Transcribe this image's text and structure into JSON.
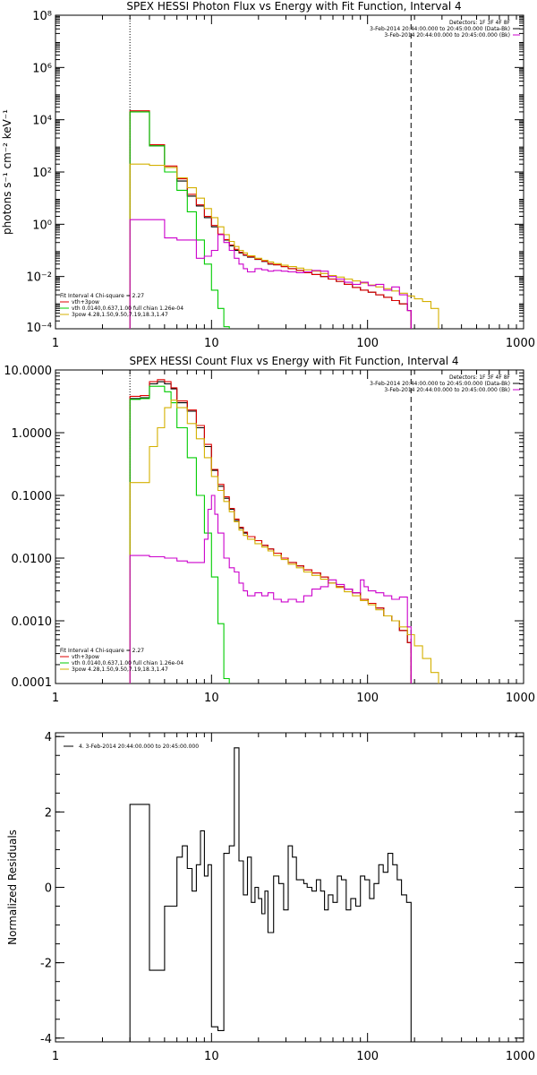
{
  "chart_data": [
    {
      "type": "line",
      "title": "SPEX HESSI Photon Flux vs Energy with Fit Function, Interval 4",
      "ylabel": "photons s⁻¹ cm⁻² keV⁻¹",
      "xlabel": "",
      "x_scale": "log",
      "y_scale": "log",
      "xlim": [
        1,
        1000
      ],
      "ylim": [
        0.0001,
        100000000
      ],
      "x_ticks": [
        "1",
        "10",
        "100",
        "1000"
      ],
      "y_ticks": [
        "10⁻⁴",
        "10⁻²",
        "10⁰",
        "10²",
        "10⁴",
        "10⁶",
        "10⁸"
      ],
      "legend_top": [
        {
          "text": "Detectors: 1F 3F 4F 8F",
          "color": "#000000"
        },
        {
          "text": "3-Feb-2014 20:44:00.000 to 20:45:00.000 (Data-Bk)",
          "color": "#000000"
        },
        {
          "text": "3-Feb-2014 20:44:00.000 to 20:45:00.000 (Bk)",
          "color": "#cc00cc"
        }
      ],
      "legend_bottom": [
        {
          "text": "Fit Interval  4   Chi-square = 2.27",
          "color": "#000000"
        },
        {
          "text": "vth+3pow",
          "color": "#dd0000"
        },
        {
          "text": "vth 0.0140,0.637,1.00  full chian 1.26e-04",
          "color": "#00cc00"
        },
        {
          "text": "3pow 4.28,1.50,9.50,7.19,18.3,1.47",
          "color": "#d4b000"
        }
      ],
      "vlines": [
        {
          "x": 3.0,
          "style": "dotted"
        },
        {
          "x": 190,
          "style": "dashed"
        }
      ],
      "series": [
        {
          "name": "Data-Bk",
          "color": "#000000",
          "bins": [
            3,
            4,
            5,
            6,
            7,
            8,
            9,
            10,
            11,
            12,
            13,
            14,
            15,
            16,
            17,
            19,
            21,
            23,
            25,
            28,
            31,
            35,
            39,
            44,
            50,
            56,
            63,
            71,
            80,
            90,
            101,
            113,
            127,
            143,
            160,
            180,
            190
          ],
          "values": [
            20000,
            1000,
            150,
            45,
            12,
            5,
            1.8,
            0.8,
            0.4,
            0.25,
            0.15,
            0.1,
            0.08,
            0.065,
            0.055,
            0.045,
            0.038,
            0.03,
            0.028,
            0.024,
            0.02,
            0.017,
            0.014,
            0.012,
            0.01,
            0.008,
            0.0065,
            0.005,
            0.0038,
            0.003,
            0.0025,
            0.002,
            0.0016,
            0.0012,
            0.0009,
            0.0005
          ]
        },
        {
          "name": "vth+3pow",
          "color": "#dd0000",
          "bins": [
            3,
            4,
            5,
            6,
            7,
            8,
            9,
            10,
            11,
            12,
            13,
            14,
            15,
            16,
            17,
            19,
            21,
            23,
            25,
            28,
            31,
            35,
            39,
            44,
            50,
            56,
            63,
            71,
            80,
            90,
            101,
            113,
            127,
            143,
            160,
            180,
            190
          ],
          "values": [
            22000,
            1100,
            170,
            55,
            14,
            5.5,
            2,
            0.9,
            0.42,
            0.26,
            0.16,
            0.11,
            0.085,
            0.068,
            0.057,
            0.046,
            0.039,
            0.031,
            0.028,
            0.024,
            0.02,
            0.017,
            0.014,
            0.012,
            0.01,
            0.008,
            0.0065,
            0.005,
            0.0038,
            0.003,
            0.0025,
            0.002,
            0.0016,
            0.0012,
            0.0009,
            0.0005
          ]
        },
        {
          "name": "vth",
          "color": "#00cc00",
          "bins": [
            3,
            4,
            5,
            6,
            7,
            8,
            9,
            10,
            11,
            12,
            13
          ],
          "values": [
            20000,
            1000,
            100,
            20,
            3,
            0.25,
            0.03,
            0.003,
            0.0006,
            0.00012
          ]
        },
        {
          "name": "3pow",
          "color": "#d4b000",
          "bins": [
            3,
            4,
            5,
            6,
            7,
            8,
            9,
            10,
            11,
            12,
            13,
            14,
            15,
            16,
            17,
            19,
            21,
            23,
            25,
            28,
            31,
            35,
            39,
            44,
            50,
            56,
            63,
            71,
            80,
            90,
            101,
            113,
            127,
            143,
            160,
            180,
            200,
            225,
            255,
            285
          ],
          "values": [
            200,
            180,
            150,
            60,
            25,
            10,
            4,
            1.8,
            0.8,
            0.4,
            0.22,
            0.14,
            0.1,
            0.08,
            0.062,
            0.05,
            0.042,
            0.036,
            0.031,
            0.027,
            0.024,
            0.021,
            0.018,
            0.016,
            0.013,
            0.011,
            0.0095,
            0.008,
            0.0068,
            0.0056,
            0.0047,
            0.004,
            0.0034,
            0.0028,
            0.0023,
            0.0018,
            0.0014,
            0.0011,
            0.0006
          ]
        },
        {
          "name": "Bk",
          "color": "#cc00cc",
          "bins": [
            3,
            4,
            5,
            6,
            7,
            8,
            9,
            10,
            11,
            12,
            13,
            14,
            15,
            16,
            17,
            19,
            21,
            23,
            25,
            28,
            31,
            35,
            39,
            44,
            50,
            56,
            63,
            71,
            80,
            90,
            101,
            113,
            127,
            143,
            160,
            180,
            190
          ],
          "values": [
            1.5,
            1.5,
            0.3,
            0.25,
            0.25,
            0.05,
            0.06,
            0.1,
            0.4,
            0.2,
            0.1,
            0.05,
            0.03,
            0.02,
            0.015,
            0.02,
            0.018,
            0.016,
            0.017,
            0.016,
            0.015,
            0.014,
            0.015,
            0.017,
            0.016,
            0.01,
            0.008,
            0.006,
            0.005,
            0.006,
            0.0045,
            0.005,
            0.003,
            0.004,
            0.002,
            0.0005
          ]
        }
      ]
    },
    {
      "type": "line",
      "title": "SPEX HESSI Count Flux vs Energy with Fit Function, Interval 4",
      "xlabel": "",
      "ylabel": "",
      "x_scale": "log",
      "y_scale": "log",
      "xlim": [
        1,
        1000
      ],
      "ylim": [
        0.0001,
        10
      ],
      "x_ticks": [
        "1",
        "10",
        "100",
        "1000"
      ],
      "y_ticks": [
        "0.0001",
        "0.0010",
        "0.0100",
        "0.1000",
        "1.0000",
        "10.0000"
      ],
      "legend_top": [
        {
          "text": "Detectors: 1F 3F 4F 8F",
          "color": "#000000"
        },
        {
          "text": "3-Feb-2014 20:44:00.000 to 20:45:00.000 (Data-Bk)",
          "color": "#000000"
        },
        {
          "text": "3-Feb-2014 20:44:00.000 to 20:45:00.000 (Bk)",
          "color": "#cc00cc"
        }
      ],
      "legend_bottom": [
        {
          "text": "Fit Interval  4   Chi-square = 2.27",
          "color": "#000000"
        },
        {
          "text": "vth+3pow",
          "color": "#dd0000"
        },
        {
          "text": "vth 0.0140,0.637,1.00  full chian 1.26e-04",
          "color": "#00cc00"
        },
        {
          "text": "3pow 4.28,1.50,9.50,7.19,18.3,1.47",
          "color": "#d4b000"
        }
      ],
      "vlines": [
        {
          "x": 3.0,
          "style": "dotted"
        },
        {
          "x": 190,
          "style": "dashed"
        }
      ],
      "series": [
        {
          "name": "Data-Bk",
          "color": "#000000",
          "bins": [
            3,
            3.5,
            4,
            4.5,
            5,
            5.5,
            6,
            7,
            8,
            9,
            10,
            11,
            12,
            13,
            14,
            15,
            16,
            17,
            19,
            21,
            23,
            25,
            28,
            31,
            35,
            39,
            44,
            50,
            56,
            63,
            71,
            80,
            90,
            101,
            113,
            127,
            143,
            160,
            180,
            190
          ],
          "values": [
            3.5,
            3.6,
            6,
            6.5,
            6,
            5,
            3,
            2.2,
            1.2,
            0.6,
            0.25,
            0.14,
            0.09,
            0.06,
            0.04,
            0.03,
            0.025,
            0.022,
            0.019,
            0.016,
            0.014,
            0.012,
            0.01,
            0.0085,
            0.0075,
            0.0065,
            0.0058,
            0.005,
            0.004,
            0.0035,
            0.0032,
            0.0028,
            0.0022,
            0.0019,
            0.0016,
            0.0012,
            0.001,
            0.0007,
            0.00045
          ]
        },
        {
          "name": "vth+3pow",
          "color": "#dd0000",
          "bins": [
            3,
            3.5,
            4,
            4.5,
            5,
            5.5,
            6,
            7,
            8,
            9,
            10,
            11,
            12,
            13,
            14,
            15,
            16,
            17,
            19,
            21,
            23,
            25,
            28,
            31,
            35,
            39,
            44,
            50,
            56,
            63,
            71,
            80,
            90,
            101,
            113,
            127,
            143,
            160,
            180,
            190
          ],
          "values": [
            3.8,
            3.9,
            6.5,
            7,
            6.5,
            5.2,
            3.2,
            2.3,
            1.3,
            0.65,
            0.26,
            0.15,
            0.095,
            0.062,
            0.042,
            0.031,
            0.026,
            0.022,
            0.019,
            0.016,
            0.014,
            0.012,
            0.01,
            0.0085,
            0.0075,
            0.0065,
            0.0058,
            0.005,
            0.004,
            0.0035,
            0.0032,
            0.0028,
            0.0022,
            0.0019,
            0.0016,
            0.0012,
            0.001,
            0.0007,
            0.00045
          ]
        },
        {
          "name": "vth",
          "color": "#00cc00",
          "bins": [
            3,
            3.5,
            4,
            4.5,
            5,
            5.5,
            6,
            7,
            8,
            9,
            10,
            11,
            12,
            13
          ],
          "values": [
            3.4,
            3.5,
            5.5,
            5.5,
            4.5,
            3,
            1.2,
            0.4,
            0.1,
            0.025,
            0.005,
            0.0009,
            0.00012
          ]
        },
        {
          "name": "3pow",
          "color": "#d4b000",
          "bins": [
            3,
            3.5,
            4,
            4.5,
            5,
            5.5,
            6,
            7,
            8,
            9,
            10,
            11,
            12,
            13,
            14,
            15,
            16,
            17,
            19,
            21,
            23,
            25,
            28,
            31,
            35,
            39,
            44,
            50,
            56,
            63,
            71,
            80,
            90,
            101,
            113,
            127,
            143,
            160,
            180,
            200,
            225,
            255,
            285
          ],
          "values": [
            0.16,
            0.16,
            0.6,
            1.2,
            2.5,
            3.3,
            2.5,
            1.4,
            0.8,
            0.4,
            0.2,
            0.12,
            0.08,
            0.055,
            0.038,
            0.028,
            0.023,
            0.02,
            0.017,
            0.015,
            0.013,
            0.011,
            0.0095,
            0.008,
            0.007,
            0.006,
            0.0053,
            0.0046,
            0.004,
            0.0034,
            0.0029,
            0.0025,
            0.0021,
            0.0018,
            0.0015,
            0.0012,
            0.001,
            0.0008,
            0.0006,
            0.0004,
            0.00025,
            0.00015
          ]
        },
        {
          "name": "Bk",
          "color": "#cc00cc",
          "bins": [
            3,
            4,
            5,
            6,
            7,
            8,
            9,
            9.5,
            10,
            10.5,
            11,
            12,
            13,
            14,
            15,
            16,
            17,
            19,
            21,
            23,
            25,
            28,
            31,
            35,
            39,
            44,
            50,
            56,
            63,
            71,
            80,
            90,
            95,
            101,
            113,
            127,
            143,
            160,
            180,
            190
          ],
          "values": [
            0.011,
            0.0105,
            0.01,
            0.009,
            0.0085,
            0.0085,
            0.02,
            0.06,
            0.1,
            0.05,
            0.025,
            0.01,
            0.007,
            0.006,
            0.004,
            0.003,
            0.0025,
            0.0028,
            0.0025,
            0.0028,
            0.0022,
            0.002,
            0.0022,
            0.002,
            0.0025,
            0.0032,
            0.0035,
            0.0045,
            0.0038,
            0.0032,
            0.0028,
            0.0045,
            0.0035,
            0.003,
            0.0028,
            0.0025,
            0.0022,
            0.0024,
            0.0008
          ]
        }
      ]
    },
    {
      "type": "line",
      "title": "",
      "xlabel": "",
      "ylabel": "Normalized Residuals",
      "x_scale": "log",
      "y_scale": "linear",
      "xlim": [
        1,
        1000
      ],
      "ylim": [
        -4.1,
        4.1
      ],
      "x_ticks": [
        "1",
        "10",
        "100",
        "1000"
      ],
      "y_ticks": [
        "-4",
        "-2",
        "0",
        "2",
        "4"
      ],
      "legend_top": [
        {
          "text": "4. 3-Feb-2014 20:44:00.000 to 20:45:00.000",
          "color": "#000000"
        }
      ],
      "series": [
        {
          "name": "4. 3-Feb-2014 20:44:00.000 to 20:45:00.000",
          "color": "#000000",
          "bins": [
            3,
            4,
            5,
            6,
            6.5,
            7,
            7.5,
            8,
            8.5,
            9,
            9.5,
            10,
            11,
            12,
            13,
            14,
            15,
            16,
            17,
            18,
            19,
            20,
            21,
            22,
            23,
            25,
            27,
            29,
            31,
            33,
            35,
            37,
            39,
            41,
            44,
            47,
            50,
            53,
            56,
            60,
            64,
            68,
            73,
            78,
            84,
            90,
            96,
            103,
            110,
            118,
            126,
            135,
            145,
            155,
            165,
            178,
            190
          ],
          "values": [
            2.2,
            -2.2,
            -0.5,
            0.8,
            1.1,
            0.5,
            -0.1,
            0.6,
            1.5,
            0.3,
            0.6,
            -3.7,
            -3.8,
            0.9,
            1.1,
            3.7,
            0.7,
            -0.2,
            0.8,
            -0.4,
            0.0,
            -0.3,
            -0.7,
            -0.1,
            -1.2,
            0.3,
            0.1,
            -0.6,
            1.1,
            0.8,
            0.2,
            0.2,
            0.1,
            0.0,
            -0.1,
            0.2,
            -0.1,
            -0.6,
            -0.2,
            -0.4,
            0.3,
            0.2,
            -0.6,
            -0.3,
            -0.5,
            0.3,
            0.2,
            -0.3,
            0.1,
            0.6,
            0.4,
            0.9,
            0.6,
            0.2,
            -0.2,
            -0.4
          ]
        }
      ]
    }
  ]
}
